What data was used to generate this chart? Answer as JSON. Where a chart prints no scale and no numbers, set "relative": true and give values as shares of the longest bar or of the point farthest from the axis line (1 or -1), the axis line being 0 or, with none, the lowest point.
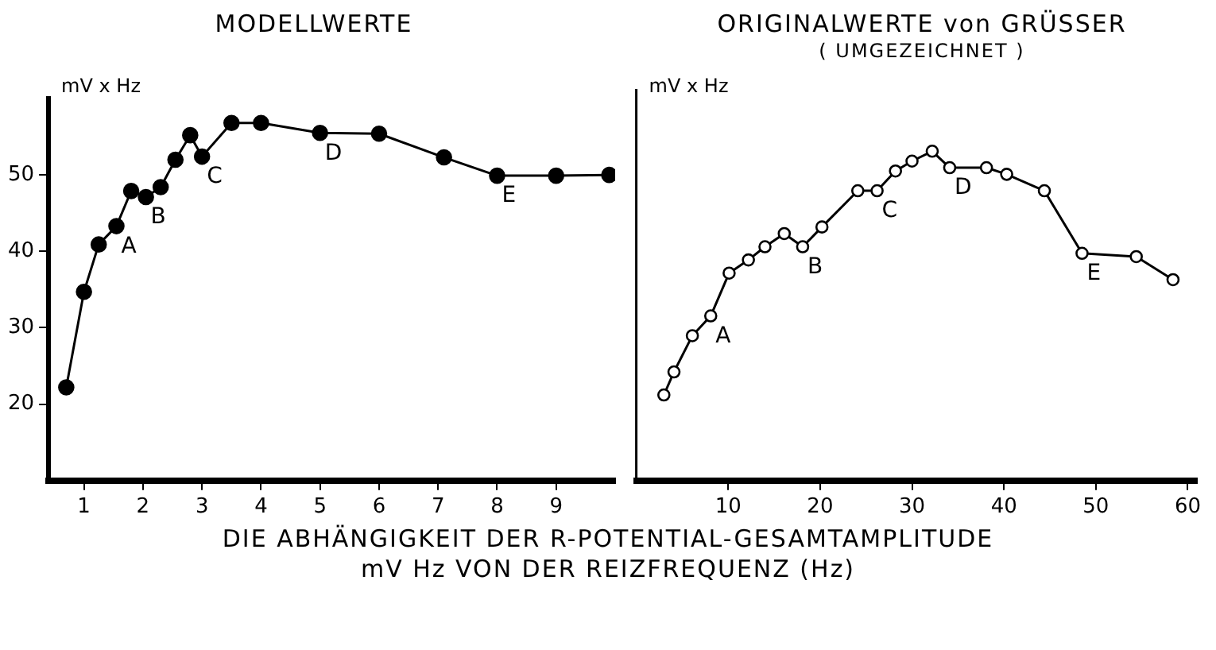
{
  "chart_data": [
    {
      "type": "line",
      "title": "MODELLWERTE",
      "ylabel": "mV x Hz",
      "marker": "circle",
      "grid": false,
      "legend": false,
      "xlim": [
        0.4,
        10
      ],
      "xticks": [
        1,
        2,
        3,
        4,
        5,
        6,
        7,
        8,
        9
      ],
      "ylim": [
        10,
        60
      ],
      "yticks": [
        20,
        30,
        40,
        50
      ],
      "series": [
        {
          "color": "#000000",
          "x": [
            0.7,
            1,
            1.25,
            1.55,
            1.8,
            2.05,
            2.3,
            2.55,
            2.8,
            3,
            3.5,
            4,
            5,
            6,
            7.1,
            8,
            9,
            9.9
          ],
          "values": [
            22.2,
            34.7,
            40.9,
            43.3,
            47.9,
            47.1,
            48.4,
            52.0,
            55.2,
            52.4,
            56.8,
            56.8,
            55.5,
            55.4,
            52.3,
            49.9,
            49.9,
            50
          ]
        }
      ],
      "annotations": [
        {
          "text": "A",
          "x": 1.55,
          "y": 43.3
        },
        {
          "text": "B",
          "x": 2.05,
          "y": 47.1
        },
        {
          "text": "C",
          "x": 3,
          "y": 52.4
        },
        {
          "text": "D",
          "x": 5,
          "y": 55.5
        },
        {
          "text": "E",
          "x": 8,
          "y": 49.9
        },
        "DIE ABHÄNGIGKEIT DER R-POTENTIAL-GESAMTAMPLITUDE",
        "mV Hz VON DER REIZFREQUENZ (Hz)"
      ]
    },
    {
      "type": "line",
      "title": "ORIGINALWERTE von GRÜSSER",
      "subtitle": "( UMGEZEICHNET )",
      "ylabel": "mV x Hz",
      "marker": "circle",
      "grid": false,
      "legend": false,
      "relative": true,
      "xlim": [
        0,
        61
      ],
      "xticks": [
        10,
        20,
        30,
        40,
        50,
        60
      ],
      "series": [
        {
          "color": "#000000",
          "x": [
            3.0,
            4.1,
            6.1,
            8.1,
            10.1,
            12.2,
            14.0,
            16.1,
            18.1,
            20.2,
            24.1,
            26.2,
            28.2,
            30.0,
            32.2,
            34.1,
            38.1,
            40.3,
            44.4,
            48.5,
            54.4,
            58.4
          ],
          "values": [
            0.26,
            0.33,
            0.44,
            0.5,
            0.63,
            0.67,
            0.71,
            0.75,
            0.71,
            0.77,
            0.88,
            0.88,
            0.94,
            0.97,
            1.0,
            0.95,
            0.95,
            0.93,
            0.88,
            0.69,
            0.68,
            0.61
          ]
        }
      ],
      "annotations": [
        {
          "text": "A",
          "x": 8.1,
          "y": 0.5
        },
        {
          "text": "B",
          "x": 18.1,
          "y": 0.71
        },
        {
          "text": "C",
          "x": 26.2,
          "y": 0.88
        },
        {
          "text": "D",
          "x": 34.1,
          "y": 0.95
        },
        {
          "text": "E",
          "x": 48.5,
          "y": 0.69
        }
      ]
    }
  ]
}
